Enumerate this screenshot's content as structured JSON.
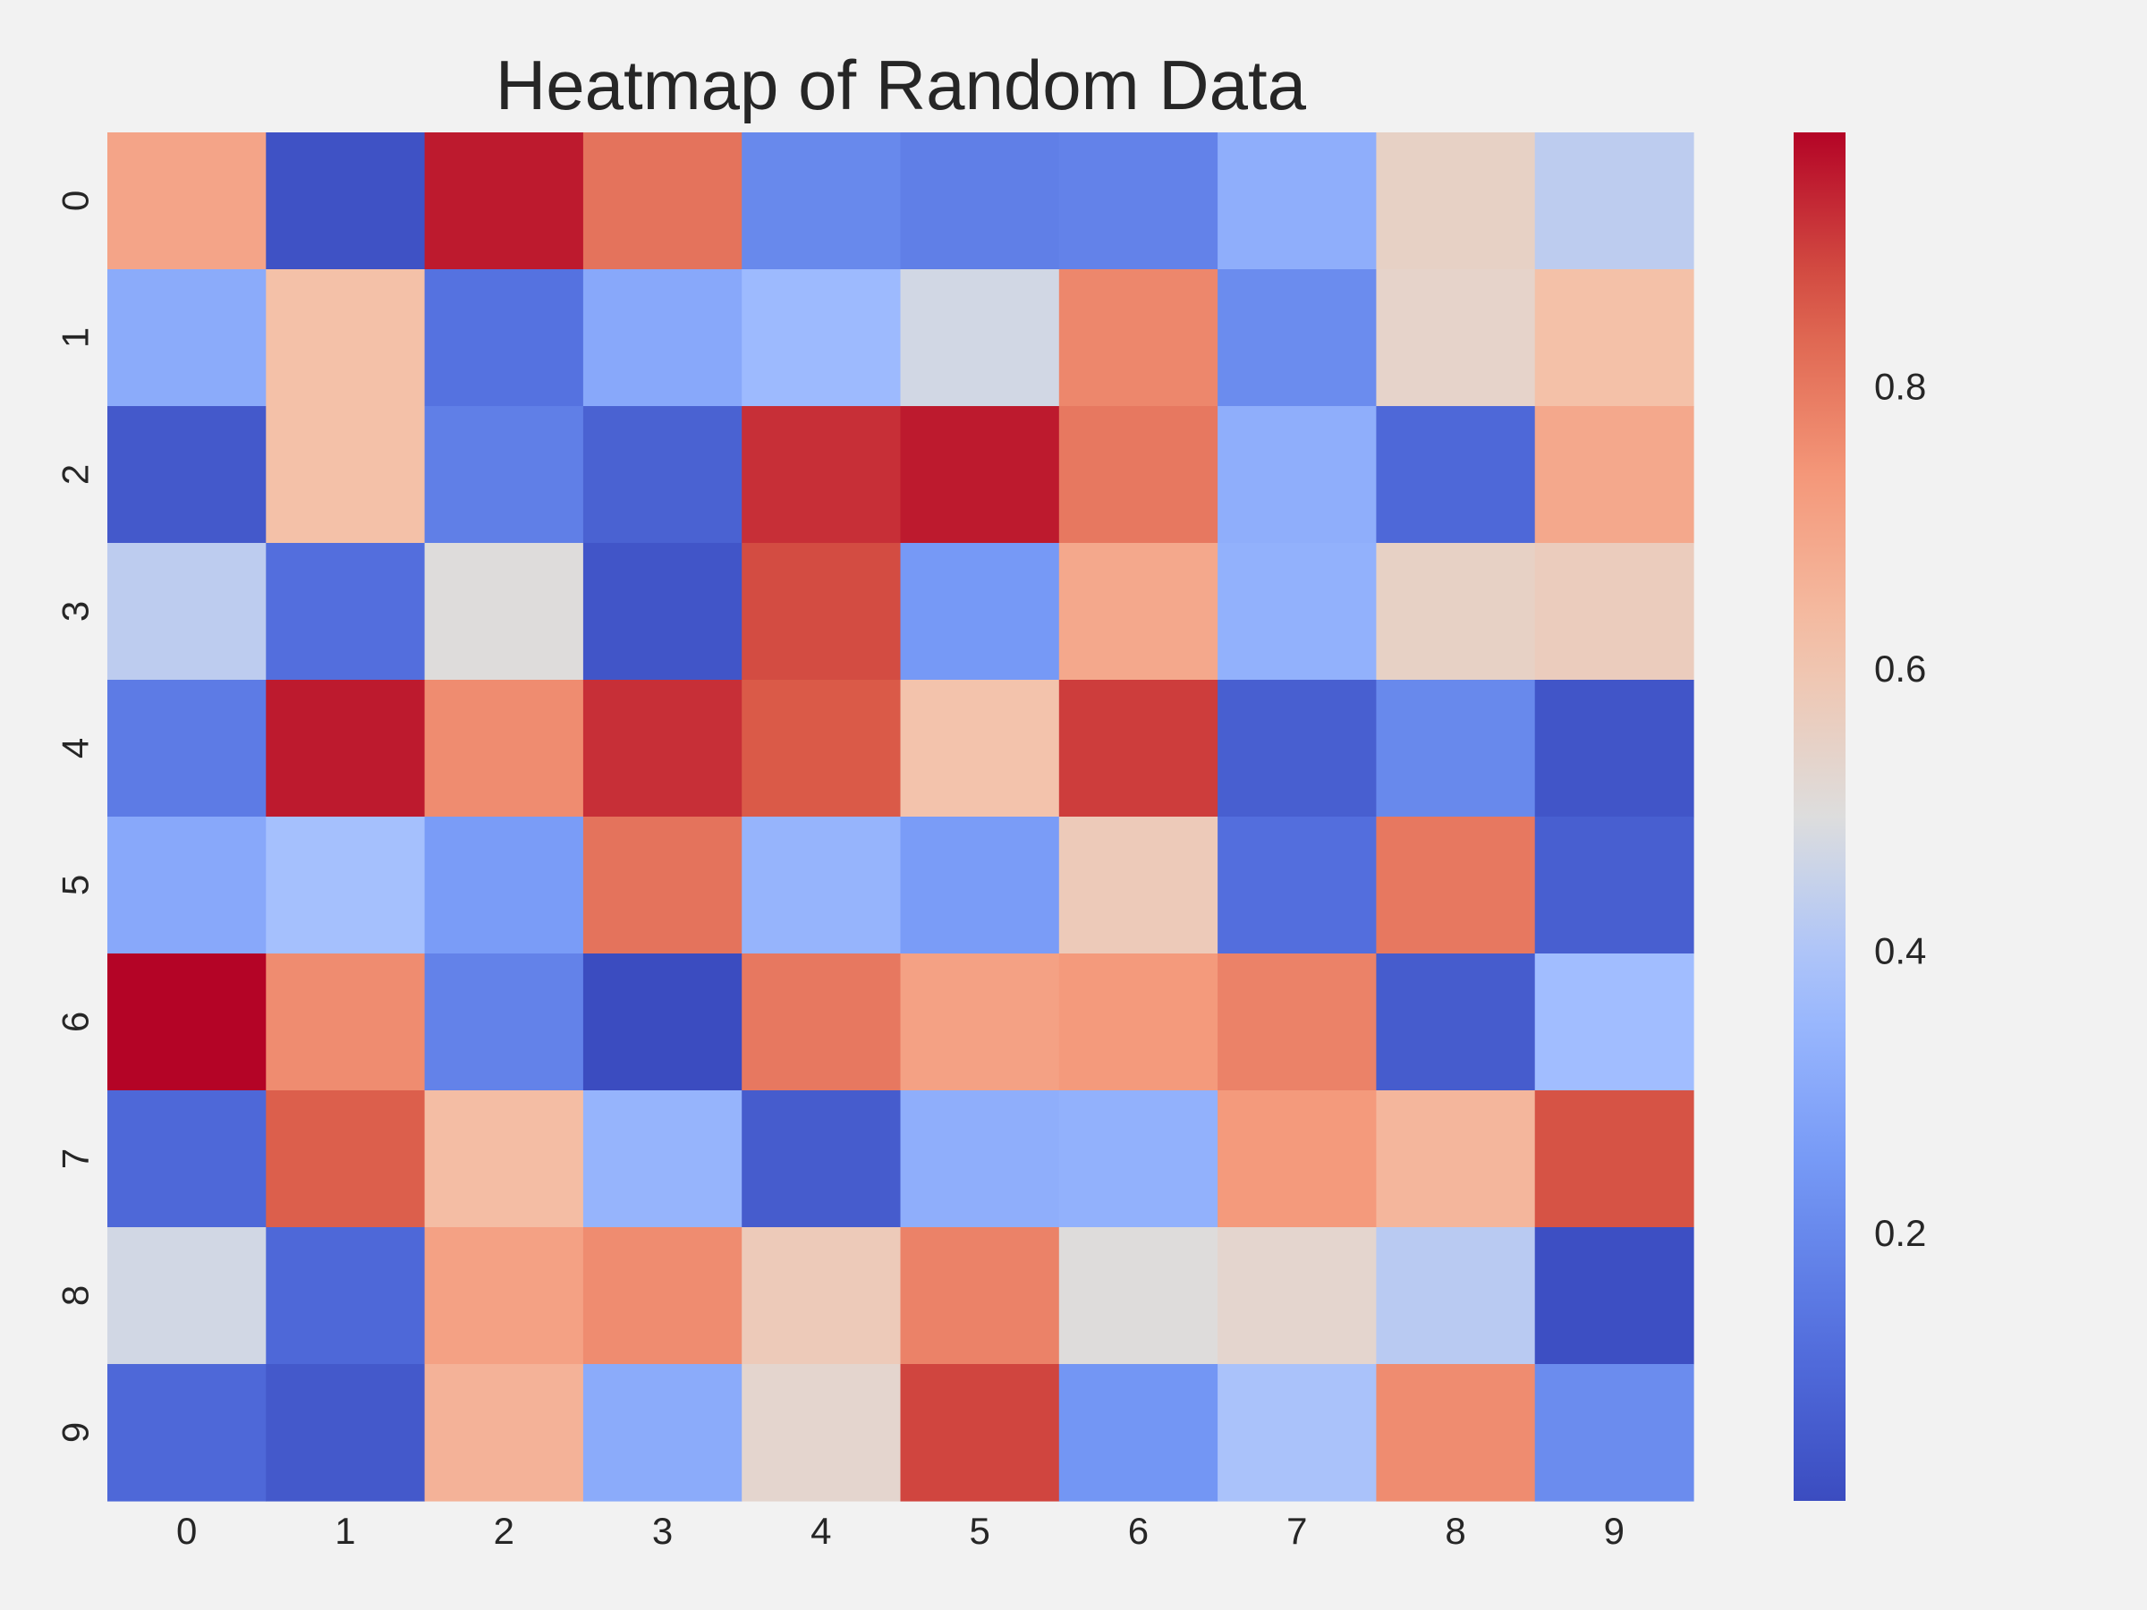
{
  "chart_data": {
    "type": "heatmap",
    "title": "Heatmap of Random Data",
    "xlabel": "",
    "ylabel": "",
    "x_categories": [
      "0",
      "1",
      "2",
      "3",
      "4",
      "5",
      "6",
      "7",
      "8",
      "9"
    ],
    "y_categories": [
      "0",
      "1",
      "2",
      "3",
      "4",
      "5",
      "6",
      "7",
      "8",
      "9"
    ],
    "values": [
      [
        0.7,
        0.03,
        0.95,
        0.81,
        0.2,
        0.17,
        0.18,
        0.32,
        0.55,
        0.43
      ],
      [
        0.31,
        0.62,
        0.13,
        0.3,
        0.36,
        0.47,
        0.77,
        0.21,
        0.54,
        0.62
      ],
      [
        0.05,
        0.62,
        0.17,
        0.08,
        0.92,
        0.95,
        0.8,
        0.32,
        0.1,
        0.69
      ],
      [
        0.43,
        0.12,
        0.5,
        0.04,
        0.88,
        0.25,
        0.69,
        0.33,
        0.55,
        0.57
      ],
      [
        0.16,
        0.95,
        0.76,
        0.92,
        0.86,
        0.61,
        0.9,
        0.07,
        0.2,
        0.04
      ],
      [
        0.3,
        0.38,
        0.26,
        0.81,
        0.34,
        0.26,
        0.58,
        0.12,
        0.8,
        0.07
      ],
      [
        0.98,
        0.76,
        0.18,
        0.01,
        0.8,
        0.71,
        0.73,
        0.78,
        0.06,
        0.37
      ],
      [
        0.1,
        0.85,
        0.63,
        0.34,
        0.06,
        0.32,
        0.33,
        0.73,
        0.65,
        0.87
      ],
      [
        0.47,
        0.1,
        0.71,
        0.76,
        0.58,
        0.78,
        0.5,
        0.53,
        0.42,
        0.02
      ],
      [
        0.1,
        0.05,
        0.66,
        0.31,
        0.53,
        0.89,
        0.24,
        0.39,
        0.76,
        0.21
      ]
    ],
    "colorbar": {
      "colormap": "coolwarm",
      "range": [
        0.01,
        0.98
      ],
      "ticks": [
        0.2,
        0.4,
        0.6,
        0.8
      ],
      "tick_labels": [
        "0.2",
        "0.4",
        "0.6",
        "0.8"
      ]
    },
    "grid": false,
    "colors": {
      "background": "#f2f2f2",
      "text": "#262626",
      "low": "#3b4cc0",
      "mid": "#dddddd",
      "high": "#b40426"
    }
  }
}
